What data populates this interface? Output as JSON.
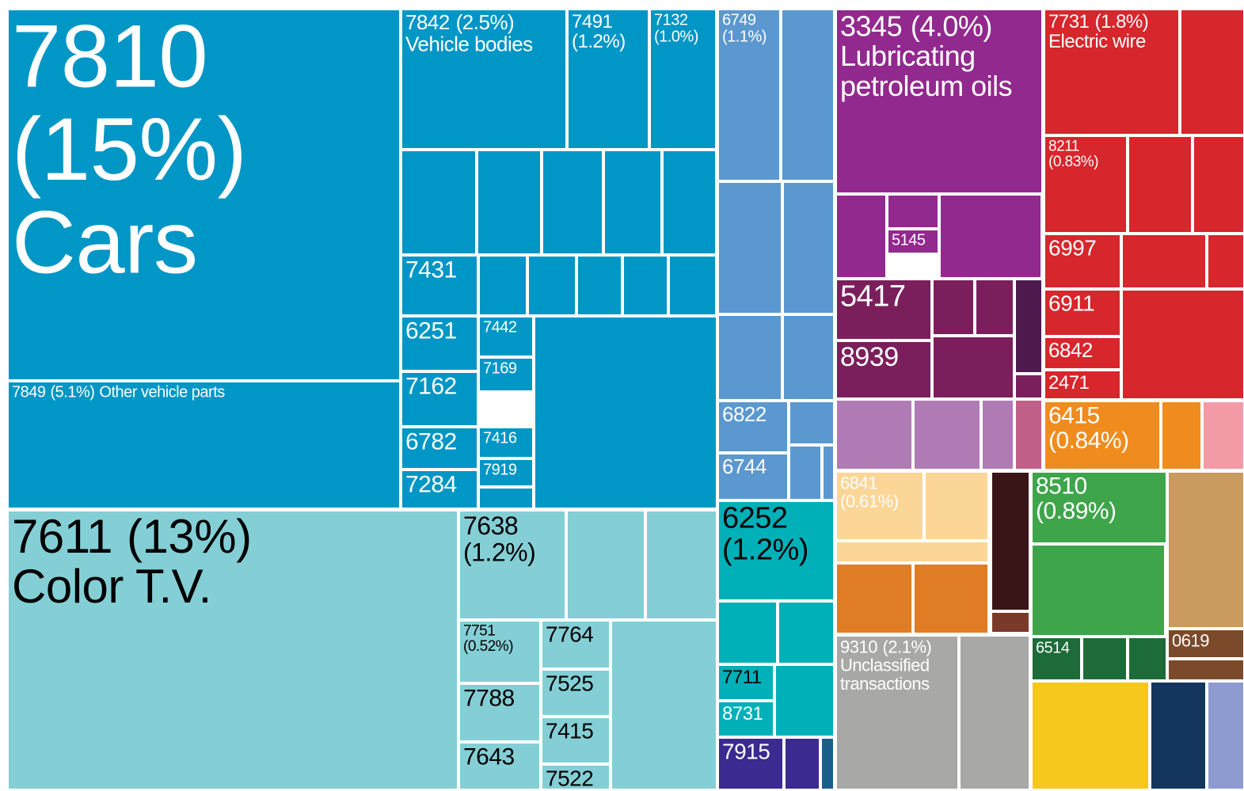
{
  "chart_data": {
    "type": "treemap",
    "items": [
      {
        "code": "7810",
        "value": 15,
        "value_label": "(15%)",
        "name": "Cars"
      },
      {
        "code": "7849",
        "value": 5.1,
        "value_label": "(5.1%)",
        "name": "Other vehicle parts"
      },
      {
        "code": "7842",
        "value": 2.5,
        "value_label": "(2.5%)",
        "name": "Vehicle bodies"
      },
      {
        "code": "7491",
        "value": 1.2,
        "value_label": "(1.2%)"
      },
      {
        "code": "7132",
        "value": 1.0,
        "value_label": "(1.0%)"
      },
      {
        "code": "6749",
        "value": 1.1,
        "value_label": "(1.1%)"
      },
      {
        "code": "7431",
        "value": 0.46
      },
      {
        "code": "6251",
        "value": 0.42
      },
      {
        "code": "7442",
        "value": 0.22
      },
      {
        "code": "7169",
        "value": 0.18
      },
      {
        "code": "7162",
        "value": 0.42
      },
      {
        "code": "7416",
        "value": 0.16
      },
      {
        "code": "6782",
        "value": 0.32
      },
      {
        "code": "7919",
        "value": 0.15
      },
      {
        "code": "7284",
        "value": 0.29
      },
      {
        "code": "7611",
        "value": 13,
        "value_label": "(13%)",
        "name": "Color T.V."
      },
      {
        "code": "7638",
        "value": 1.2,
        "value_label": "(1.2%)"
      },
      {
        "code": "7751",
        "value": 0.52,
        "value_label": "(0.52%)"
      },
      {
        "code": "7764",
        "value": 0.33
      },
      {
        "code": "7788",
        "value": 0.47
      },
      {
        "code": "7525",
        "value": 0.32
      },
      {
        "code": "7415",
        "value": 0.32
      },
      {
        "code": "7643",
        "value": 0.38
      },
      {
        "code": "7522",
        "value": 0.17
      },
      {
        "code": "6822",
        "value": 0.36
      },
      {
        "code": "6744",
        "value": 0.33
      },
      {
        "code": "6252",
        "value": 1.2,
        "value_label": "(1.2%)"
      },
      {
        "code": "7711",
        "value": 0.2
      },
      {
        "code": "8731",
        "value": 0.2
      },
      {
        "code": "7915",
        "value": 0.34
      },
      {
        "code": "3345",
        "value": 4.0,
        "value_label": "(4.0%)",
        "name": "Lubricating petroleum oils"
      },
      {
        "code": "5145",
        "value": 0.12
      },
      {
        "code": "5417",
        "value": 0.58
      },
      {
        "code": "8939",
        "value": 0.55
      },
      {
        "code": "7731",
        "value": 1.8,
        "value_label": "(1.8%)",
        "name": "Electric wire"
      },
      {
        "code": "8211",
        "value": 0.83,
        "value_label": "(0.83%)"
      },
      {
        "code": "6997",
        "value": 0.42
      },
      {
        "code": "6911",
        "value": 0.36
      },
      {
        "code": "6842",
        "value": 0.25
      },
      {
        "code": "2471",
        "value": 0.22
      },
      {
        "code": "6415",
        "value": 0.84,
        "value_label": "(0.84%)"
      },
      {
        "code": "6841",
        "value": 0.61,
        "value_label": "(0.61%)"
      },
      {
        "code": "9310",
        "value": 2.1,
        "value_label": "(2.1%)",
        "name": "Unclassified transactions"
      },
      {
        "code": "8510",
        "value": 0.89,
        "value_label": "(0.89%)"
      },
      {
        "code": "6514",
        "value": 0.21
      },
      {
        "code": "0619",
        "value": 0.22
      }
    ]
  }
}
